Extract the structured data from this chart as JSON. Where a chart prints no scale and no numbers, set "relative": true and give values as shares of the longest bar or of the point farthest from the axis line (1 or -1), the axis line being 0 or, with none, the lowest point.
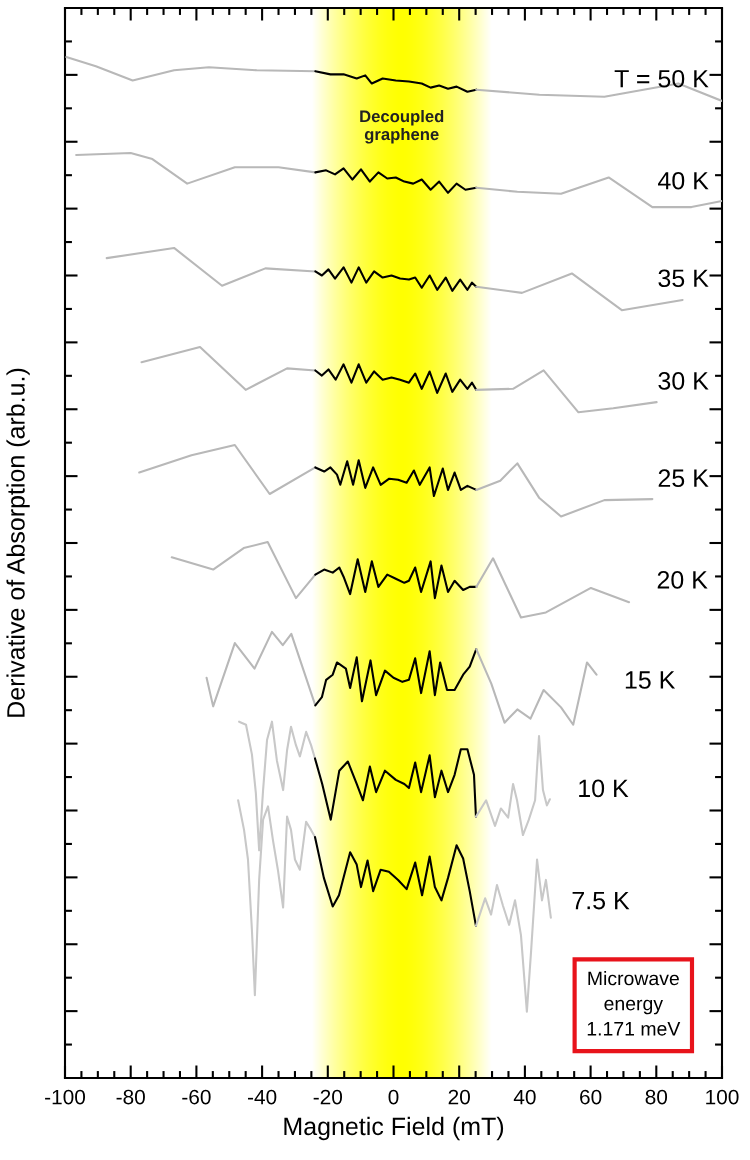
{
  "chart_data": {
    "type": "line",
    "relative": true,
    "xlabel": "Magnetic Field (mT)",
    "ylabel": "Derivative of Absorption (arb.u.)",
    "xlim": [
      -100,
      100
    ],
    "xticks": [
      -100,
      -80,
      -60,
      -40,
      -20,
      0,
      20,
      40,
      60,
      80,
      100
    ],
    "tick_labels": "x",
    "bands": [
      {
        "axis": "x",
        "from": -25,
        "to": 30,
        "label": "Decoupled\ngraphene",
        "color": "#ffff00"
      }
    ],
    "annotations": [
      "Microwave\nenergy\n1.171 meV"
    ],
    "series": [
      {
        "color": "#b8b8b8",
        "x": [
          -99.6,
          -90.6,
          -79.4,
          -66.8,
          -56.2,
          -41.6,
          -23.8
        ],
        "values": [
          1.0,
          0.991,
          0.977,
          0.987,
          0.99,
          0.987,
          0.986
        ]
      },
      {
        "color": "#000000",
        "x": [
          -23.8,
          -19.2,
          -15.2,
          -11.2,
          -8.6,
          -6.6,
          -3.3,
          0.7,
          4.7,
          8.6,
          11.3,
          13.9,
          16.6,
          19.2,
          22.5,
          25.2
        ],
        "values": [
          0.986,
          0.983,
          0.983,
          0.979,
          0.982,
          0.974,
          0.979,
          0.977,
          0.976,
          0.974,
          0.97,
          0.972,
          0.969,
          0.971,
          0.966,
          0.968
        ]
      },
      {
        "name": "T = 50 K",
        "color": "#b8b8b8",
        "x": [
          25.2,
          44.4,
          64.2,
          86.7,
          100
        ],
        "values": [
          0.968,
          0.963,
          0.961,
          0.974,
          0.957
        ]
      },
      {
        "color": "#b8b8b8",
        "x": [
          -96.6,
          -80.0,
          -73.4,
          -62.8,
          -48.3,
          -35.0,
          -23.8
        ],
        "values": [
          0.904,
          0.906,
          0.9,
          0.876,
          0.892,
          0.892,
          0.887
        ]
      },
      {
        "color": "#000000",
        "x": [
          -23.8,
          -20.5,
          -17.8,
          -15.2,
          -12.5,
          -9.9,
          -7.2,
          -4.6,
          -1.9,
          0.7,
          3.3,
          6.0,
          8.6,
          11.3,
          13.9,
          16.6,
          19.2,
          21.9,
          25.2
        ],
        "values": [
          0.887,
          0.889,
          0.885,
          0.891,
          0.88,
          0.89,
          0.878,
          0.887,
          0.881,
          0.882,
          0.878,
          0.876,
          0.88,
          0.87,
          0.878,
          0.867,
          0.876,
          0.87,
          0.872
        ]
      },
      {
        "name": "40 K",
        "color": "#b8b8b8",
        "x": [
          25.2,
          37.7,
          51.0,
          65.5,
          78.8,
          90.7,
          100
        ],
        "values": [
          0.872,
          0.868,
          0.866,
          0.882,
          0.853,
          0.853,
          0.859
        ]
      },
      {
        "color": "#b8b8b8",
        "x": [
          -87.3,
          -66.8,
          -52.2,
          -39.0,
          -23.8
        ],
        "values": [
          0.803,
          0.813,
          0.776,
          0.793,
          0.79
        ]
      },
      {
        "color": "#000000",
        "x": [
          -23.8,
          -21.8,
          -19.8,
          -17.8,
          -15.2,
          -12.8,
          -10.6,
          -8.3,
          -5.9,
          -3.3,
          -0.6,
          2.0,
          4.7,
          6.6,
          8.6,
          11.0,
          13.3,
          15.9,
          17.9,
          20.3,
          22.5,
          23.9,
          25.2
        ],
        "values": [
          0.79,
          0.786,
          0.792,
          0.783,
          0.794,
          0.779,
          0.794,
          0.779,
          0.79,
          0.784,
          0.786,
          0.783,
          0.782,
          0.784,
          0.774,
          0.786,
          0.772,
          0.784,
          0.771,
          0.782,
          0.772,
          0.779,
          0.775
        ]
      },
      {
        "name": "35 K",
        "color": "#b8b8b8",
        "x": [
          25.2,
          39.1,
          54.3,
          69.5,
          88.0
        ],
        "values": [
          0.775,
          0.769,
          0.788,
          0.752,
          0.762
        ]
      },
      {
        "color": "#b8b8b8",
        "x": [
          -76.7,
          -58.9,
          -45.0,
          -32.4,
          -23.8
        ],
        "values": [
          0.701,
          0.716,
          0.674,
          0.695,
          0.693
        ]
      },
      {
        "color": "#000000",
        "x": [
          -23.8,
          -21.8,
          -19.8,
          -17.6,
          -15.2,
          -12.8,
          -10.6,
          -8.3,
          -5.9,
          -3.3,
          -0.6,
          2.0,
          4.7,
          6.6,
          8.6,
          11.0,
          13.3,
          15.9,
          17.9,
          20.3,
          22.5,
          23.9,
          25.2
        ],
        "values": [
          0.693,
          0.688,
          0.694,
          0.684,
          0.699,
          0.681,
          0.699,
          0.681,
          0.692,
          0.684,
          0.686,
          0.684,
          0.681,
          0.69,
          0.675,
          0.692,
          0.671,
          0.69,
          0.672,
          0.684,
          0.675,
          0.681,
          0.674
        ]
      },
      {
        "name": "30 K",
        "color": "#b8b8b8",
        "x": [
          25.2,
          36.4,
          45.7,
          56.3,
          66.9,
          80.1
        ],
        "values": [
          0.674,
          0.675,
          0.693,
          0.652,
          0.656,
          0.662
        ]
      },
      {
        "color": "#b8b8b8",
        "x": [
          -77.4,
          -61.5,
          -48.3,
          -37.7,
          -23.8
        ],
        "values": [
          0.593,
          0.61,
          0.62,
          0.572,
          0.598
        ]
      },
      {
        "color": "#000000",
        "x": [
          -23.8,
          -21.1,
          -19.2,
          -17.2,
          -16.2,
          -14.1,
          -12.3,
          -10.6,
          -8.6,
          -6.2,
          -3.9,
          -1.3,
          1.4,
          4.0,
          6.2,
          8.0,
          11.0,
          12.3,
          15.0,
          16.6,
          18.6,
          20.5,
          22.5,
          25.2
        ],
        "values": [
          0.598,
          0.594,
          0.598,
          0.591,
          0.581,
          0.604,
          0.581,
          0.605,
          0.578,
          0.598,
          0.581,
          0.587,
          0.586,
          0.583,
          0.595,
          0.581,
          0.598,
          0.57,
          0.597,
          0.576,
          0.593,
          0.576,
          0.58,
          0.576
        ]
      },
      {
        "name": "25 K",
        "color": "#b8b8b8",
        "x": [
          25.2,
          32.5,
          37.7,
          44.4,
          51.0,
          64.2,
          78.8
        ],
        "values": [
          0.576,
          0.585,
          0.602,
          0.568,
          0.55,
          0.566,
          0.567
        ]
      },
      {
        "color": "#b8b8b8",
        "x": [
          -67.5,
          -54.9,
          -45.6,
          -38.3,
          -29.7,
          -23.8
        ],
        "values": [
          0.51,
          0.498,
          0.519,
          0.525,
          0.47,
          0.493
        ]
      },
      {
        "color": "#000000",
        "x": [
          -23.8,
          -21.1,
          -18.5,
          -16.5,
          -15.2,
          -13.2,
          -10.9,
          -8.6,
          -6.6,
          -4.6,
          -1.9,
          0.7,
          3.3,
          4.7,
          6.6,
          8.4,
          11.3,
          12.6,
          14.6,
          16.6,
          18.6,
          21.2,
          23.2,
          25.2
        ],
        "values": [
          0.493,
          0.498,
          0.495,
          0.5,
          0.491,
          0.474,
          0.508,
          0.476,
          0.506,
          0.481,
          0.493,
          0.489,
          0.485,
          0.487,
          0.5,
          0.476,
          0.506,
          0.47,
          0.502,
          0.476,
          0.487,
          0.478,
          0.481,
          0.481
        ]
      },
      {
        "name": "20 K",
        "color": "#b8b8b8",
        "x": [
          25.2,
          30.3,
          38.8,
          46.4,
          60.1,
          71.7
        ],
        "values": [
          0.481,
          0.509,
          0.451,
          0.456,
          0.48,
          0.466
        ]
      },
      {
        "color": "#b8b8b8",
        "x": [
          -56.9,
          -54.9,
          -48.3,
          -42.3,
          -37.0,
          -33.7,
          -31.1,
          -23.8
        ],
        "values": [
          0.392,
          0.364,
          0.426,
          0.401,
          0.437,
          0.424,
          0.435,
          0.365
        ]
      },
      {
        "color": "#000000",
        "x": [
          -23.8,
          -21.8,
          -20.5,
          -18.5,
          -17.2,
          -14.5,
          -13.2,
          -11.2,
          -9.6,
          -7.0,
          -5.3,
          -2.6,
          0.0,
          2.7,
          4.7,
          6.6,
          8.4,
          11.0,
          12.6,
          14.2,
          16.3,
          18.6,
          21.2,
          23.2,
          25.2
        ],
        "values": [
          0.365,
          0.373,
          0.39,
          0.395,
          0.407,
          0.401,
          0.382,
          0.412,
          0.369,
          0.409,
          0.375,
          0.399,
          0.392,
          0.388,
          0.39,
          0.411,
          0.377,
          0.418,
          0.375,
          0.407,
          0.38,
          0.38,
          0.395,
          0.403,
          0.42
        ]
      },
      {
        "name": "15 K",
        "color": "#b8b8b8",
        "x": [
          25.2,
          29.8,
          33.8,
          37.7,
          41.7,
          45.7,
          51.0,
          54.7,
          58.9,
          61.8
        ],
        "values": [
          0.42,
          0.386,
          0.348,
          0.361,
          0.352,
          0.38,
          0.363,
          0.346,
          0.407,
          0.395
        ]
      },
      {
        "color": "#c8c8c8",
        "x": [
          -47.0,
          -44.9,
          -43.1,
          -41.9,
          -40.9,
          -39.7,
          -38.5,
          -37.0,
          -35.5,
          -33.6,
          -32.4,
          -31.2,
          -29.7,
          -28.5,
          -26.6,
          -25.1,
          -23.9
        ],
        "values": [
          0.349,
          0.346,
          0.317,
          0.279,
          0.223,
          0.282,
          0.331,
          0.349,
          0.311,
          0.282,
          0.321,
          0.344,
          0.326,
          0.315,
          0.339,
          0.326,
          0.313
        ]
      },
      {
        "color": "#000000",
        "x": [
          -23.9,
          -21.7,
          -19.1,
          -16.5,
          -13.9,
          -11.2,
          -9.3,
          -7.2,
          -5.3,
          -2.6,
          0.7,
          3.3,
          4.7,
          6.6,
          8.4,
          11.0,
          12.6,
          14.6,
          16.6,
          18.6,
          20.5,
          22.5,
          24.5,
          25.1
        ],
        "values": [
          0.313,
          0.288,
          0.253,
          0.301,
          0.31,
          0.288,
          0.272,
          0.305,
          0.28,
          0.301,
          0.292,
          0.288,
          0.284,
          0.309,
          0.28,
          0.316,
          0.275,
          0.301,
          0.28,
          0.297,
          0.322,
          0.322,
          0.297,
          0.256
        ]
      },
      {
        "name": "10 K",
        "color": "#c8c8c8",
        "x": [
          25.1,
          28.2,
          30.9,
          32.7,
          34.9,
          36.4,
          37.6,
          39.4,
          41.2,
          43.1,
          44.3,
          45.5,
          46.7,
          47.6
        ],
        "values": [
          0.256,
          0.272,
          0.247,
          0.264,
          0.255,
          0.288,
          0.272,
          0.238,
          0.253,
          0.272,
          0.335,
          0.282,
          0.267,
          0.273
        ]
      },
      {
        "color": "#c8c8c8",
        "x": [
          -47.3,
          -45.5,
          -44.3,
          -43.1,
          -42.2,
          -40.9,
          -39.7,
          -38.2,
          -36.7,
          -35.2,
          -33.6,
          -32.4,
          -31.2,
          -30.0,
          -28.5,
          -26.6,
          -25.1,
          -23.9
        ],
        "values": [
          0.272,
          0.243,
          0.214,
          0.145,
          0.081,
          0.194,
          0.253,
          0.266,
          0.233,
          0.204,
          0.167,
          0.256,
          0.243,
          0.214,
          0.204,
          0.251,
          0.243,
          0.236
        ]
      },
      {
        "color": "#000000",
        "x": [
          -23.9,
          -21.2,
          -18.5,
          -16.6,
          -13.2,
          -11.2,
          -9.9,
          -7.9,
          -6.2,
          -3.9,
          -1.4,
          1.4,
          4.0,
          6.6,
          8.7,
          11.0,
          12.6,
          14.6,
          16.6,
          19.2,
          21.2,
          23.2,
          25.1
        ],
        "values": [
          0.236,
          0.196,
          0.168,
          0.179,
          0.221,
          0.209,
          0.187,
          0.213,
          0.183,
          0.204,
          0.202,
          0.194,
          0.185,
          0.211,
          0.179,
          0.217,
          0.187,
          0.174,
          0.196,
          0.228,
          0.215,
          0.183,
          0.149
        ]
      },
      {
        "name": "7.5 K",
        "color": "#c8c8c8",
        "x": [
          25.1,
          27.9,
          29.7,
          31.5,
          33.3,
          35.2,
          37.0,
          38.8,
          40.6,
          41.9,
          43.7,
          45.2,
          46.4,
          47.9
        ],
        "values": [
          0.149,
          0.176,
          0.16,
          0.189,
          0.169,
          0.15,
          0.174,
          0.14,
          0.065,
          0.125,
          0.214,
          0.174,
          0.194,
          0.157
        ]
      }
    ]
  }
}
